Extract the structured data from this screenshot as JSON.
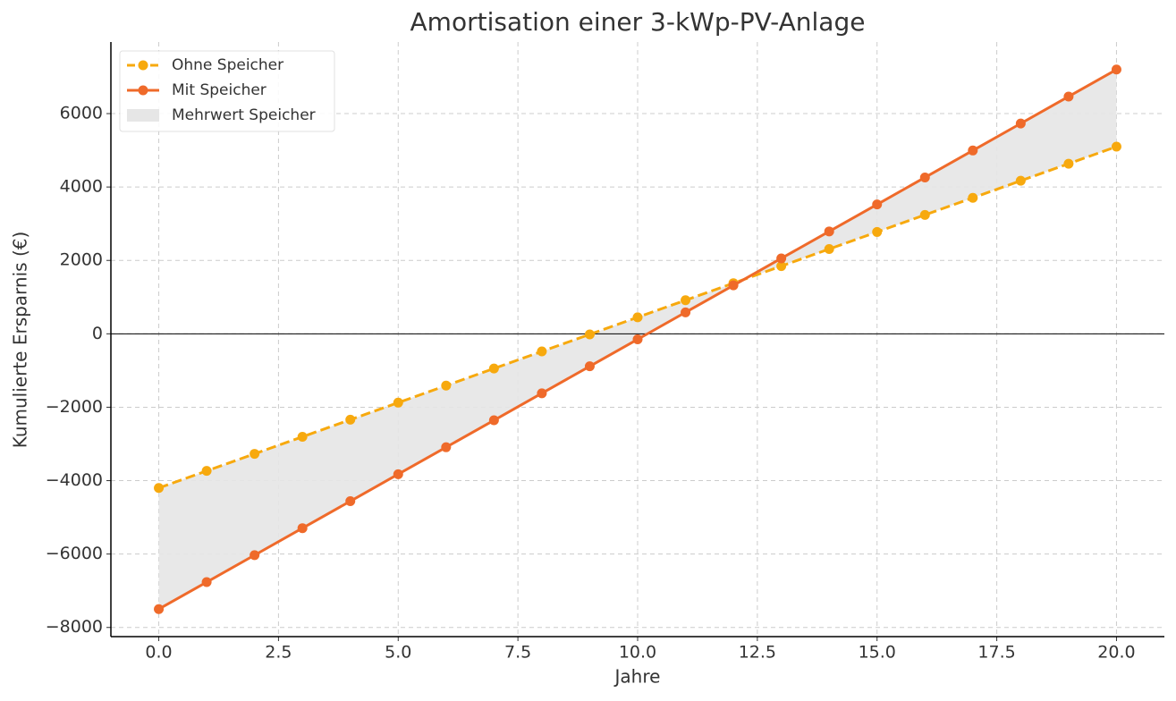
{
  "chart_data": {
    "type": "line",
    "title": "Amortisation einer 3-kWp-PV-Anlage",
    "xlabel": "Jahre",
    "ylabel": "Kumulierte Ersparnis (€)",
    "x": [
      0,
      1,
      2,
      3,
      4,
      5,
      6,
      7,
      8,
      9,
      10,
      11,
      12,
      13,
      14,
      15,
      16,
      17,
      18,
      19,
      20
    ],
    "series": [
      {
        "name": "Ohne Speicher",
        "color": "#f7a90e",
        "linestyle": "dashed",
        "values": [
          -4200,
          -3735,
          -3270,
          -2805,
          -2340,
          -1875,
          -1410,
          -945,
          -480,
          -15,
          450,
          915,
          1380,
          1845,
          2310,
          2775,
          3240,
          3705,
          4170,
          4635,
          5100
        ]
      },
      {
        "name": "Mit Speicher",
        "color": "#ef6a2a",
        "linestyle": "solid",
        "values": [
          -7500,
          -6765,
          -6030,
          -5295,
          -4560,
          -3825,
          -3090,
          -2355,
          -1620,
          -885,
          -150,
          585,
          1320,
          2055,
          2790,
          3525,
          4260,
          4995,
          5730,
          6465,
          7200
        ]
      }
    ],
    "fill_between": {
      "name": "Mehrwert Speicher",
      "color": "#e6e6e6"
    },
    "xlim": [
      -1,
      21
    ],
    "ylim": [
      -8250,
      7950
    ],
    "xticks": [
      {
        "value": 0,
        "label": "0.0"
      },
      2.5,
      {
        "value": 5,
        "label": "5.0"
      },
      7.5,
      {
        "value": 10,
        "label": "10.0"
      },
      12.5,
      {
        "value": 15,
        "label": "15.0"
      },
      17.5,
      {
        "value": 20,
        "label": "20.0"
      }
    ],
    "yticks": [
      {
        "value": -8000,
        "label": "−8000"
      },
      {
        "value": -6000,
        "label": "−6000"
      },
      {
        "value": -4000,
        "label": "−4000"
      },
      {
        "value": -2000,
        "label": "−2000"
      },
      0,
      2000,
      4000,
      6000
    ],
    "grid": true,
    "legend": "upper-left"
  }
}
